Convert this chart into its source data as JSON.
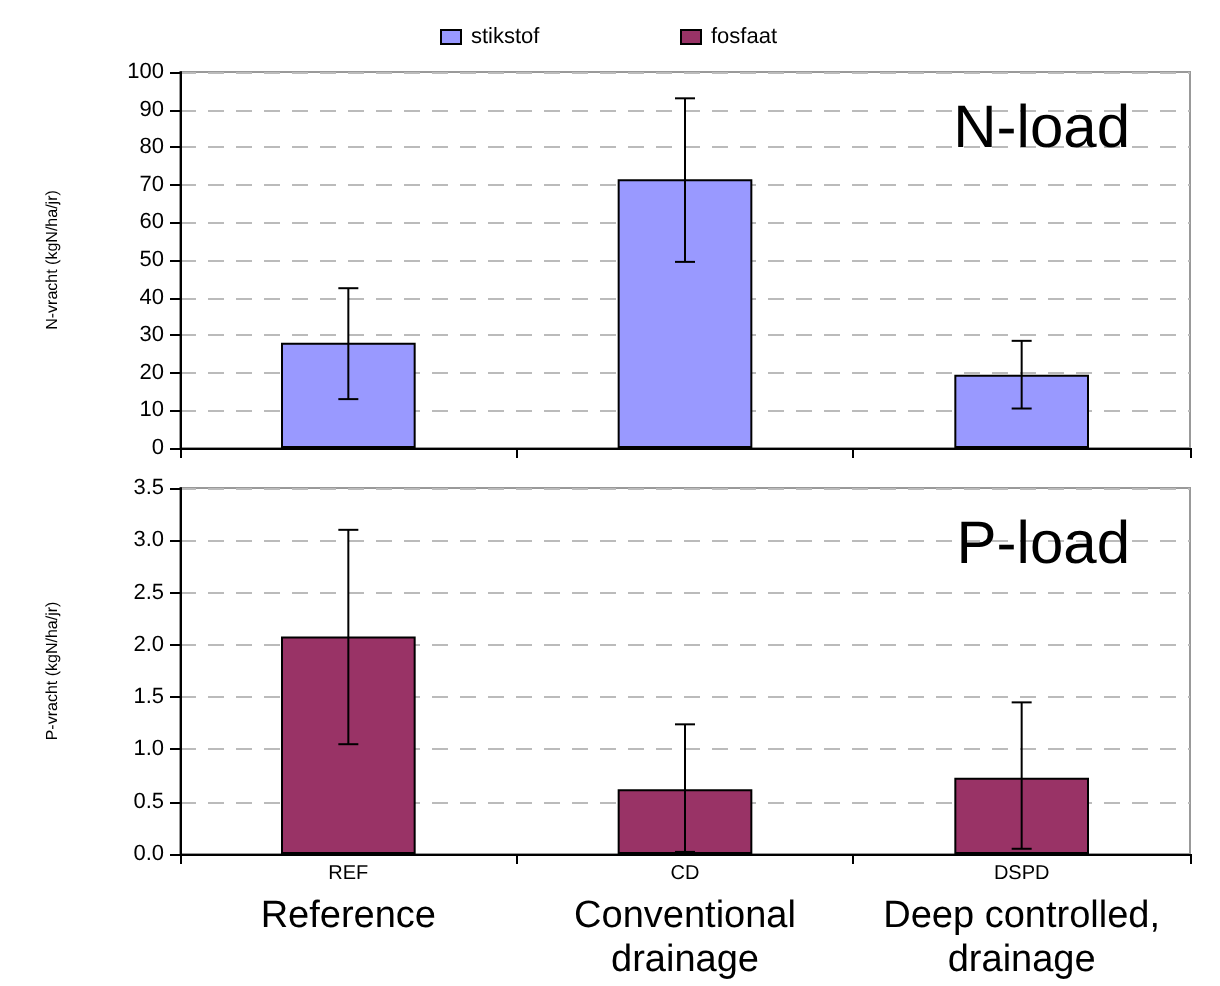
{
  "chart_data": [
    {
      "type": "bar",
      "title": "N-load",
      "ylabel": "N-vracht (kgN/ha/jr)",
      "categories": [
        null,
        null,
        null
      ],
      "tick_labels": "y",
      "series": [
        {
          "name": "stikstof",
          "color": "#9999ff",
          "values": [
            28,
            71.5,
            19.5
          ],
          "errors": [
            [
              13,
              42.5
            ],
            [
              49.5,
              93
            ],
            [
              10.5,
              28.5
            ]
          ]
        }
      ],
      "ylim": [
        0,
        100
      ],
      "yticks": [
        0,
        10,
        20,
        30,
        40,
        50,
        60,
        70,
        80,
        90,
        100
      ],
      "grid": "y",
      "legend": "top"
    },
    {
      "type": "bar",
      "title": "P-load",
      "ylabel": "P-vracht (kgN/ha/jr)",
      "categories": [
        "REF",
        "CD",
        "DSPD"
      ],
      "series": [
        {
          "name": "fosfaat",
          "color": "#993366",
          "values": [
            2.08,
            0.62,
            0.73
          ],
          "errors": [
            [
              1.05,
              3.1
            ],
            [
              0.02,
              1.24
            ],
            [
              0.05,
              1.45
            ]
          ]
        }
      ],
      "ylim": [
        0,
        3.5
      ],
      "yticks": [
        {
          "value": 0,
          "label": "0.0"
        },
        0.5,
        {
          "value": 1,
          "label": "1.0"
        },
        1.5,
        {
          "value": 2,
          "label": "2.0"
        },
        2.5,
        {
          "value": 3,
          "label": "3.0"
        },
        3.5
      ],
      "grid": "y",
      "legend": "top",
      "annotations": [
        "Reference",
        "Conventional drainage",
        "Deep controlled, drainage"
      ]
    }
  ]
}
